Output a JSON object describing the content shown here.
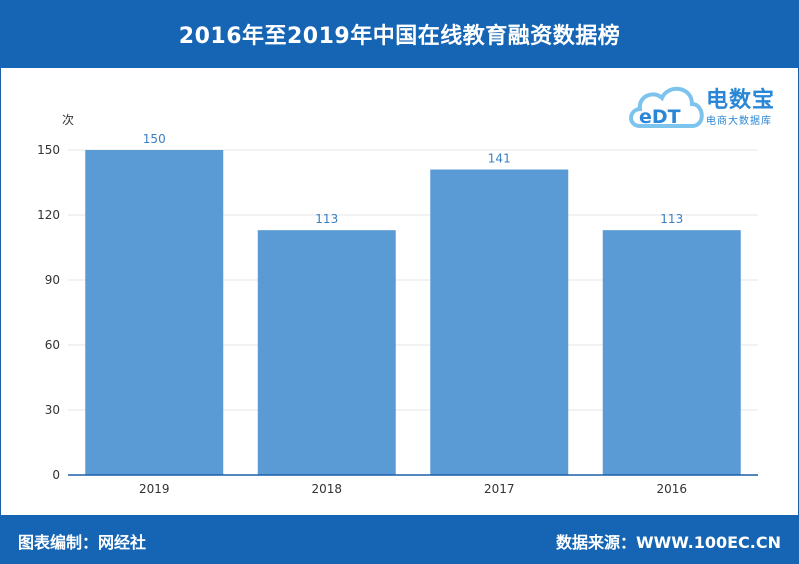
{
  "header": {
    "title": "2016年至2019年中国在线教育融资数据榜"
  },
  "footer": {
    "left": "图表编制：网经社",
    "right": "数据来源：WWW.100EC.CN"
  },
  "logo": {
    "mark": "eDT",
    "name": "电数宝",
    "subtitle": "电商大数据库"
  },
  "colors": {
    "header_bg": "#1565b4",
    "bar": "#5b9bd5",
    "label": "#3b7fc4",
    "axis": "#1a5fa8"
  },
  "chart_data": {
    "type": "bar",
    "categories": [
      "2019",
      "2018",
      "2017",
      "2016"
    ],
    "values": [
      150,
      113,
      141,
      113
    ],
    "ylabel": "次",
    "ylim": [
      0,
      150
    ],
    "yticks": [
      0,
      30,
      60,
      90,
      120,
      150
    ],
    "grid": true,
    "legend": "none"
  }
}
